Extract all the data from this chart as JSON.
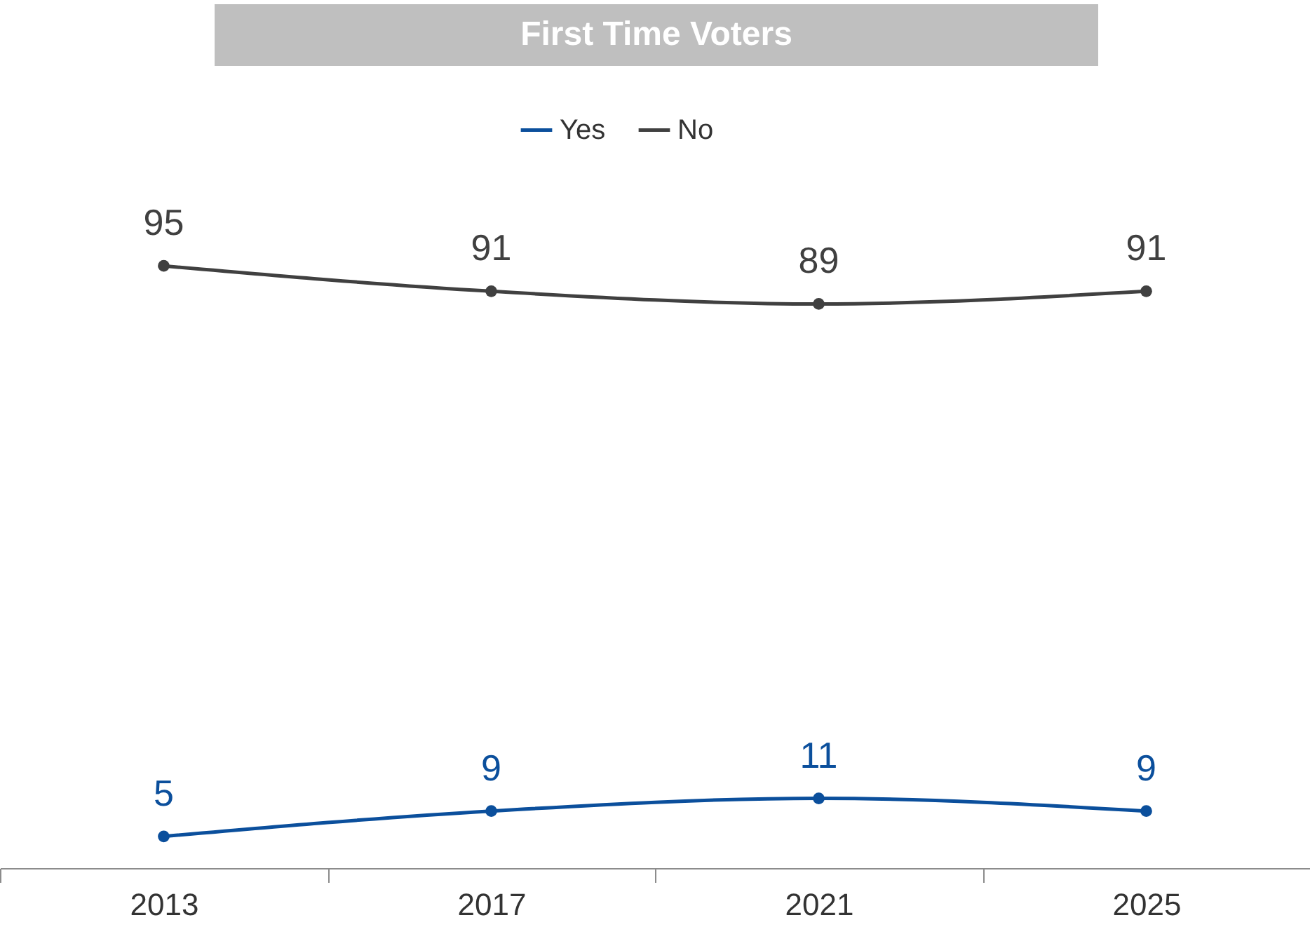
{
  "chart_data": {
    "type": "line",
    "title": "First Time Voters",
    "categories": [
      "2013",
      "2017",
      "2021",
      "2025"
    ],
    "series": [
      {
        "name": "Yes",
        "color": "#0b4f9c",
        "values": [
          5,
          9,
          11,
          9
        ]
      },
      {
        "name": "No",
        "color": "#404040",
        "values": [
          95,
          91,
          89,
          91
        ]
      }
    ],
    "data_labels": true,
    "legend": "top",
    "marker": "circle",
    "line_style": "solid",
    "grid": false,
    "tick_labels": "x"
  }
}
